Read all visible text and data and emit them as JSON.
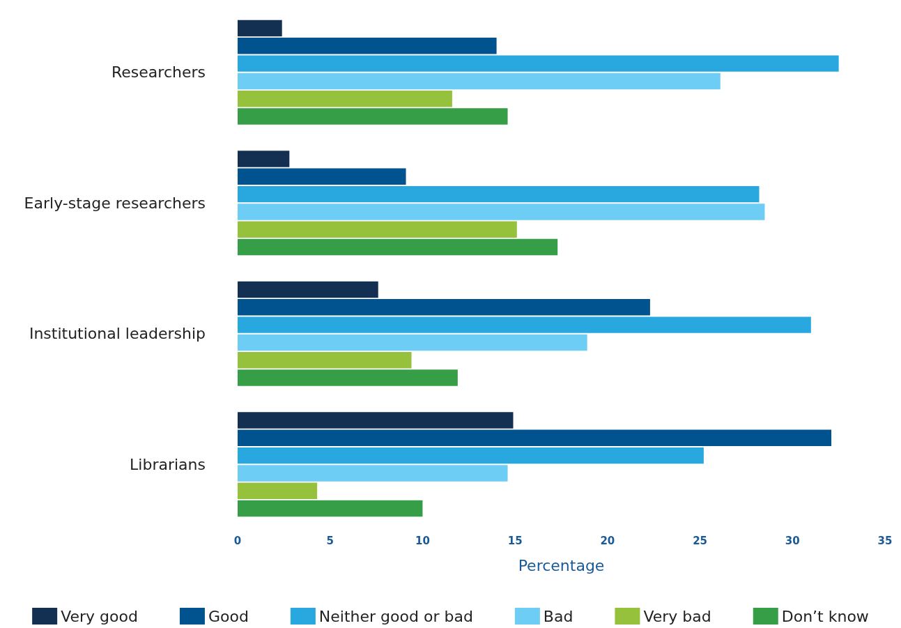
{
  "chart_data": {
    "type": "bar",
    "orientation": "horizontal",
    "xlabel": "Percentage",
    "categories": [
      "Researchers",
      "Early-stage researchers",
      "Institutional leadership",
      "Librarians"
    ],
    "series": [
      {
        "name": "Very good",
        "color": "#132f52",
        "values": [
          2.4,
          2.8,
          7.6,
          14.9
        ]
      },
      {
        "name": "Good",
        "color": "#00538f",
        "values": [
          14.0,
          9.1,
          22.3,
          32.1
        ]
      },
      {
        "name": "Neither good or bad",
        "color": "#29a8e0",
        "values": [
          32.5,
          28.2,
          31.0,
          25.2
        ]
      },
      {
        "name": "Bad",
        "color": "#6dcdf5",
        "values": [
          26.1,
          28.5,
          18.9,
          14.6
        ]
      },
      {
        "name": "Very bad",
        "color": "#95c13d",
        "values": [
          11.6,
          15.1,
          9.4,
          4.3
        ]
      },
      {
        "name": "Don’t know",
        "color": "#369e47",
        "values": [
          14.6,
          17.3,
          11.9,
          10.0
        ]
      }
    ],
    "xlim": [
      0,
      35
    ],
    "xticks": [
      0,
      5,
      10,
      15,
      20,
      25,
      30,
      35
    ],
    "grid": false,
    "legend": "bottom"
  }
}
